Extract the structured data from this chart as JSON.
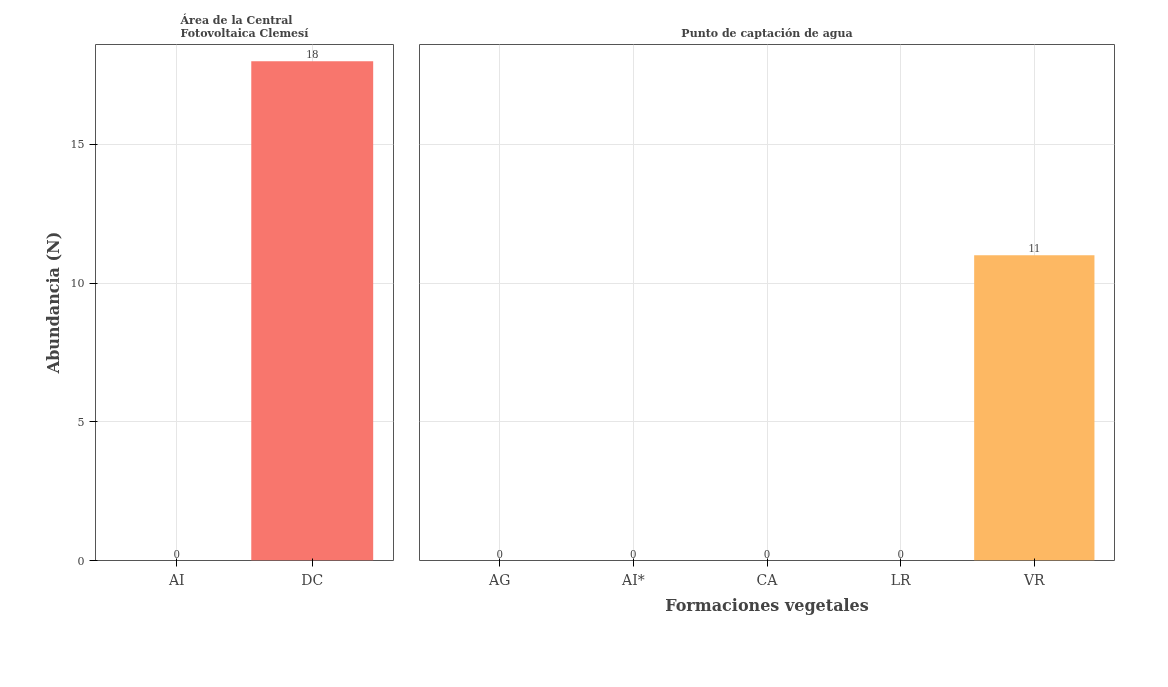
{
  "chart_data": [
    {
      "type": "bar",
      "title": "Área de la Central\nFotovoltaica Clemesí",
      "ylabel": "Abundancia (N)",
      "categories": [
        "AI",
        "DC"
      ],
      "values": [
        0,
        18
      ],
      "colors": [
        "#f8766d",
        "#f8766d"
      ],
      "ylim": [
        0,
        18.6
      ],
      "yticks": [
        0,
        5,
        10,
        15
      ],
      "grid": true,
      "data_labels": true,
      "tick_labels": "xy"
    },
    {
      "type": "bar",
      "title": "Punto de captación de agua",
      "xlabel": "Formaciones vegetales",
      "categories": [
        "AG",
        "AI*",
        "CA",
        "LR",
        "VR"
      ],
      "values": [
        0,
        0,
        0,
        0,
        11
      ],
      "colors": [
        "#fdb863",
        "#fdb863",
        "#fdb863",
        "#fdb863",
        "#fdb863"
      ],
      "ylim": [
        0,
        18.6
      ],
      "yticks": [
        0,
        5,
        10,
        15
      ],
      "grid": true,
      "data_labels": true,
      "tick_labels": "x"
    }
  ]
}
